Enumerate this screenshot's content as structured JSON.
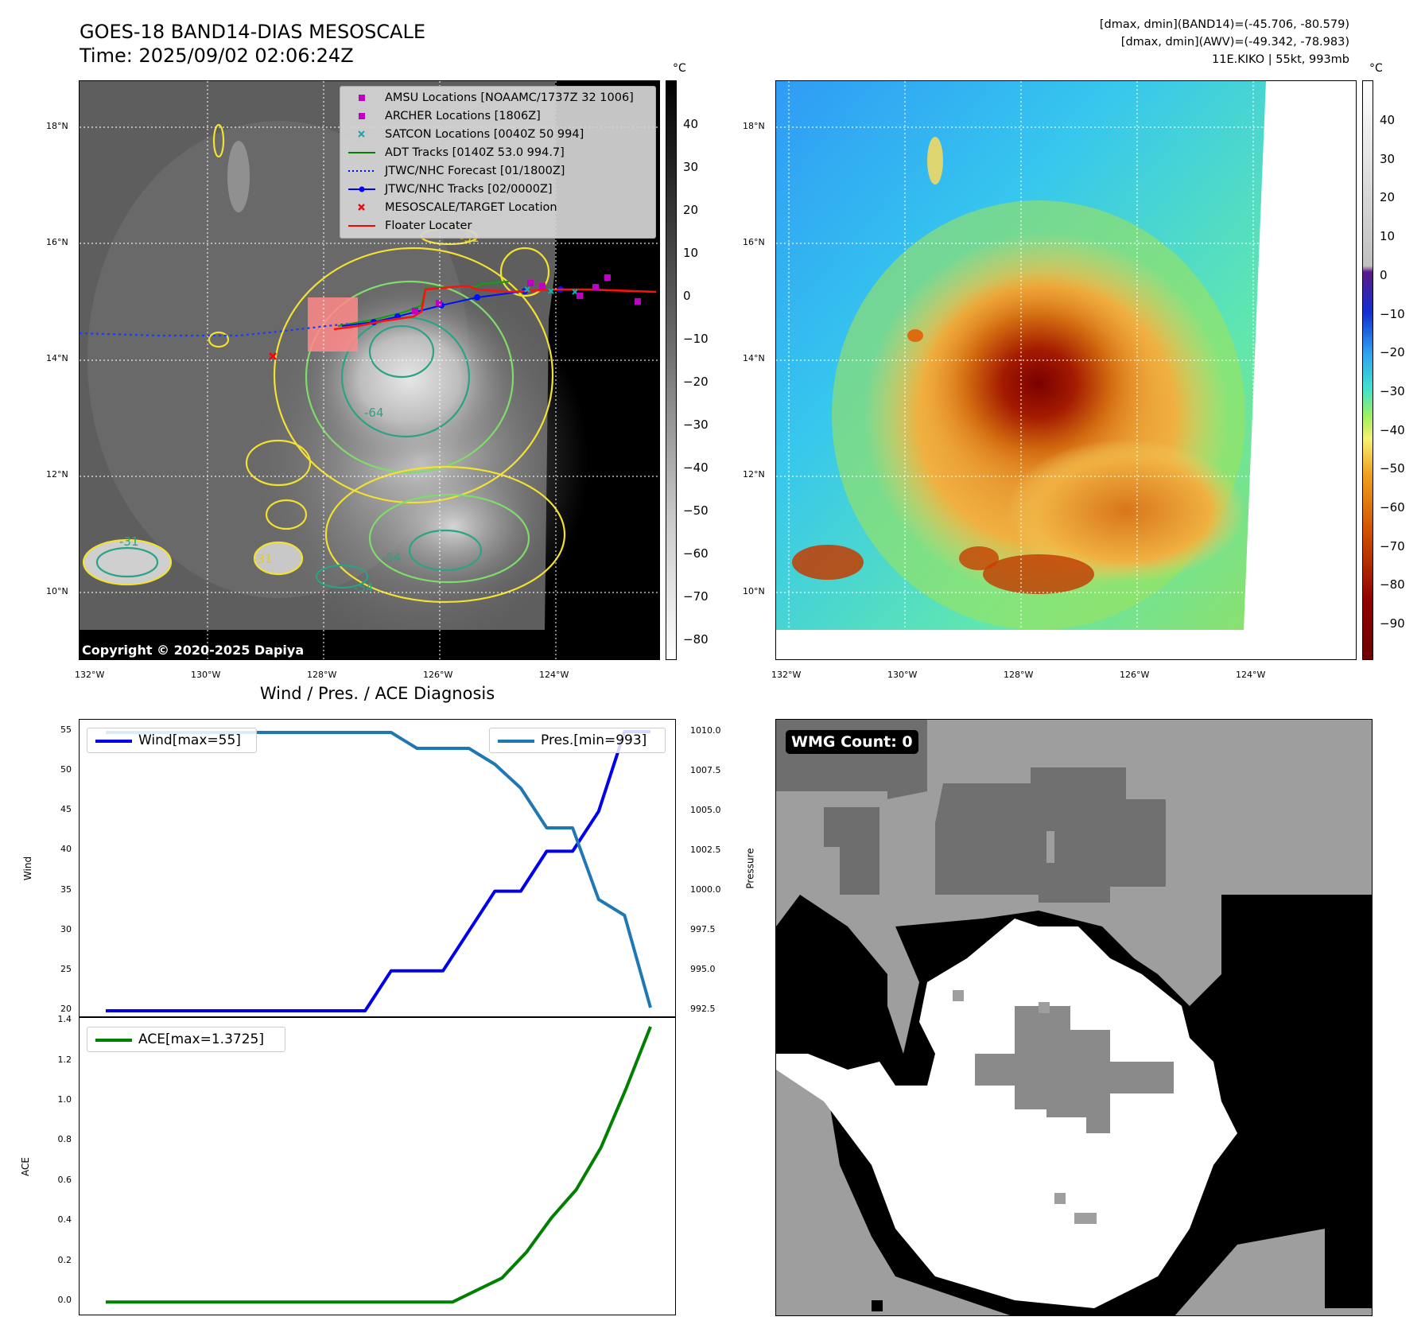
{
  "header": {
    "title_line1": "GOES-18 BAND14-DIAS MESOSCALE",
    "title_line2": "Time: 2025/09/02 02:06:24Z",
    "info_line1": "[dmax, dmin](BAND14)=(-45.706, -80.579)",
    "info_line2": "[dmax, dmin](AWV)=(-49.342, -78.983)",
    "info_line3": "11E.KIKO | 55kt, 993mb"
  },
  "map_left": {
    "lat_labels": [
      "18°N",
      "16°N",
      "14°N",
      "12°N",
      "10°N"
    ],
    "lon_labels": [
      "132°W",
      "130°W",
      "128°W",
      "126°W",
      "124°W"
    ],
    "contour_labels": [
      "-31",
      "-64",
      "-54",
      "-54",
      "-31",
      "-31"
    ],
    "copyright": "Copyright © 2020-2025 Dapiya",
    "legend": [
      {
        "label": "AMSU Locations [NOAAMC/1737Z 32 1006]",
        "color": "#c000c0",
        "symbol": "square"
      },
      {
        "label": "ARCHER Locations [1806Z]",
        "color": "#c000c0",
        "symbol": "square"
      },
      {
        "label": "SATCON Locations [0040Z 50 994]",
        "color": "#00b0b0",
        "symbol": "x"
      },
      {
        "label": "ADT Tracks [0140Z 53.0 994.7]",
        "color": "#008000",
        "symbol": "line"
      },
      {
        "label": "JTWC/NHC Forecast [01/1800Z]",
        "color": "#0000ff",
        "symbol": "dotted"
      },
      {
        "label": "JTWC/NHC Tracks [02/0000Z]",
        "color": "#0000ff",
        "symbol": "line-dot"
      },
      {
        "label": "MESOSCALE/TARGET Location",
        "color": "#ff0000",
        "symbol": "x"
      },
      {
        "label": "Floater Locater",
        "color": "#ff0000",
        "symbol": "line"
      }
    ],
    "colorbar": {
      "unit": "°C",
      "ticks": [
        "40",
        "30",
        "20",
        "10",
        "0",
        "−10",
        "−20",
        "−30",
        "−40",
        "−50",
        "−60",
        "−70",
        "−80"
      ]
    }
  },
  "map_right": {
    "lat_labels": [
      "18°N",
      "16°N",
      "14°N",
      "12°N",
      "10°N"
    ],
    "lon_labels": [
      "132°W",
      "130°W",
      "128°W",
      "126°W",
      "124°W"
    ],
    "colorbar": {
      "unit": "°C",
      "ticks": [
        "40",
        "30",
        "20",
        "10",
        "0",
        "−10",
        "−20",
        "−30",
        "−40",
        "−50",
        "−60",
        "−70",
        "−80",
        "−90"
      ]
    }
  },
  "wmg": {
    "label": "WMG Count: 0"
  },
  "chart_data": [
    {
      "type": "line",
      "title": "Wind / Pres. / ACE Diagnosis",
      "ylabel": "Wind",
      "y2label": "Pressure",
      "ylim": [
        19,
        56.5
      ],
      "y2lim": [
        992,
        1010.8
      ],
      "yticks": [
        "55",
        "50",
        "45",
        "40",
        "35",
        "30",
        "25",
        "20"
      ],
      "y2ticks": [
        "1010.0",
        "1007.5",
        "1005.0",
        "1002.5",
        "1000.0",
        "997.5",
        "995.0",
        "992.5"
      ],
      "series": [
        {
          "name": "Wind[max=55]",
          "axis": "left",
          "color": "#0000ee",
          "values": [
            20,
            20,
            20,
            20,
            20,
            20,
            20,
            20,
            20,
            20,
            20,
            25,
            25,
            25,
            30,
            35,
            35,
            40,
            40,
            45,
            55,
            55
          ]
        },
        {
          "name": "Pres.[min=993]",
          "axis": "right",
          "color": "#1f77b4",
          "values": [
            1010,
            1010,
            1010,
            1010,
            1010,
            1010,
            1010,
            1010,
            1010,
            1010,
            1010,
            1010,
            1009,
            1009,
            1009,
            1008,
            1006.5,
            1004,
            1004,
            999.5,
            998.5,
            992.7
          ]
        }
      ]
    },
    {
      "type": "line",
      "ylabel": "ACE",
      "ylim": [
        -0.07,
        1.42
      ],
      "yticks": [
        "1.4",
        "1.2",
        "1.0",
        "0.8",
        "0.6",
        "0.4",
        "0.2",
        "0.0"
      ],
      "series": [
        {
          "name": "ACE[max=1.3725]",
          "color": "#008000",
          "values": [
            0,
            0,
            0,
            0,
            0,
            0,
            0,
            0,
            0,
            0,
            0,
            0,
            0,
            0,
            0,
            0.06,
            0.12,
            0.25,
            0.42,
            0.56,
            0.77,
            1.06,
            1.3725
          ]
        }
      ]
    }
  ]
}
